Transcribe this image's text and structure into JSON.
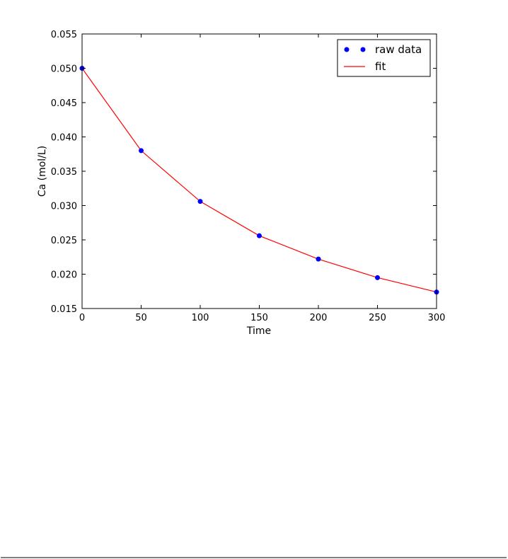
{
  "chart_data": {
    "type": "line",
    "title": "",
    "xlabel": "Time",
    "ylabel": "Ca (mol/L)",
    "xlim": [
      0,
      300
    ],
    "ylim": [
      0.015,
      0.055
    ],
    "xticks": [
      0,
      50,
      100,
      150,
      200,
      250,
      300
    ],
    "xtick_labels": [
      "0",
      "50",
      "100",
      "150",
      "200",
      "250",
      "300"
    ],
    "yticks": [
      0.015,
      0.02,
      0.025,
      0.03,
      0.035,
      0.04,
      0.045,
      0.05,
      0.055
    ],
    "ytick_labels": [
      "0.015",
      "0.020",
      "0.025",
      "0.030",
      "0.035",
      "0.040",
      "0.045",
      "0.050",
      "0.055"
    ],
    "grid": false,
    "legend_position": "top-right",
    "series": [
      {
        "name": "raw data",
        "style": "markers",
        "color": "#0000ff",
        "x": [
          0,
          50,
          100,
          150,
          200,
          250,
          300
        ],
        "y": [
          0.05,
          0.038,
          0.0306,
          0.0256,
          0.0222,
          0.0195,
          0.0174
        ]
      },
      {
        "name": "fit",
        "style": "line",
        "color": "#ff0000",
        "x": [
          0,
          50,
          100,
          150,
          200,
          250,
          300
        ],
        "y": [
          0.05,
          0.038,
          0.0306,
          0.0256,
          0.0222,
          0.0195,
          0.0174
        ]
      }
    ]
  }
}
